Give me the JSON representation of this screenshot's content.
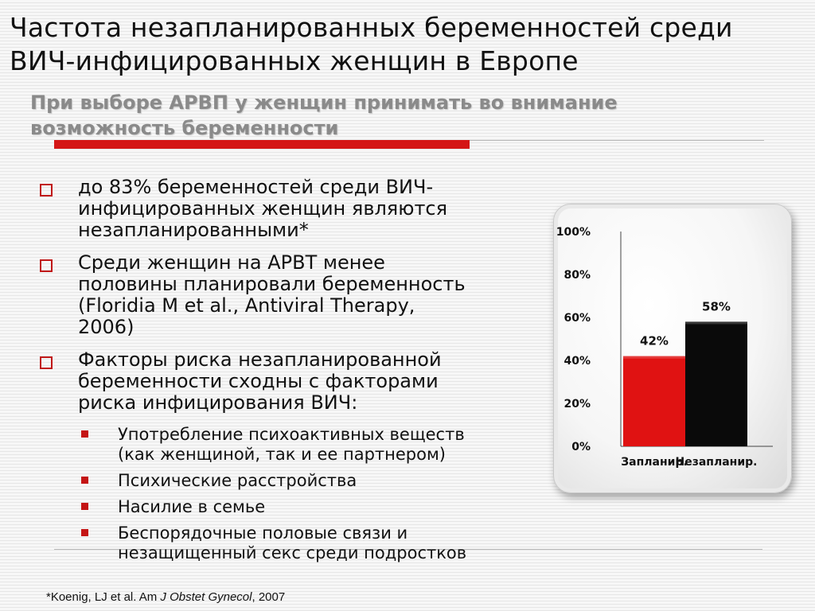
{
  "slide": {
    "title_line1": "Частота незапланированных беременностей среди",
    "title_line2": "ВИЧ-инфицированных женщин в Европе",
    "subtitle_line1": "При выборе АРВП у женщин принимать во внимание",
    "subtitle_line2": "возможность беременности",
    "accent_color": "#d41616"
  },
  "bullets": [
    {
      "lines": [
        "до 83% беременностей среди ВИЧ-",
        "инфицированных женщин являются",
        "незапланированными*"
      ]
    },
    {
      "lines": [
        "Среди  женщин на АРВТ менее",
        "половины планировали беременность",
        "(Floridia M et al., Antiviral Therapy,",
        "2006)"
      ]
    },
    {
      "lines": [
        "Факторы риска незапланированной",
        "беременности сходны с факторами",
        "риска инфицирования ВИЧ:"
      ]
    }
  ],
  "subbullets": [
    {
      "lines": [
        "Употребление психоактивных веществ",
        "(как женщиной, так и ее партнером)"
      ]
    },
    {
      "lines": [
        "Психические расстройства"
      ]
    },
    {
      "lines": [
        "Насилие в семье"
      ]
    },
    {
      "lines": [
        "Беспорядочные половые связи  и",
        "незащищенный  секс среди подростков"
      ]
    }
  ],
  "footnote": {
    "prefix": "*Koenig, LJ et al. Am ",
    "journal": "J Obstet Gynecol",
    "suffix": ", 2007"
  },
  "chart_data": {
    "type": "bar",
    "categories": [
      "Запланир.",
      "Незапланир."
    ],
    "values": [
      42,
      58
    ],
    "data_labels": [
      "42%",
      "58%"
    ],
    "y_ticks": [
      "0%",
      "20%",
      "40%",
      "60%",
      "80%",
      "100%"
    ],
    "ylim": [
      0,
      100
    ],
    "colors": [
      "#e01212",
      "#0a0a0a"
    ],
    "grid": false
  }
}
